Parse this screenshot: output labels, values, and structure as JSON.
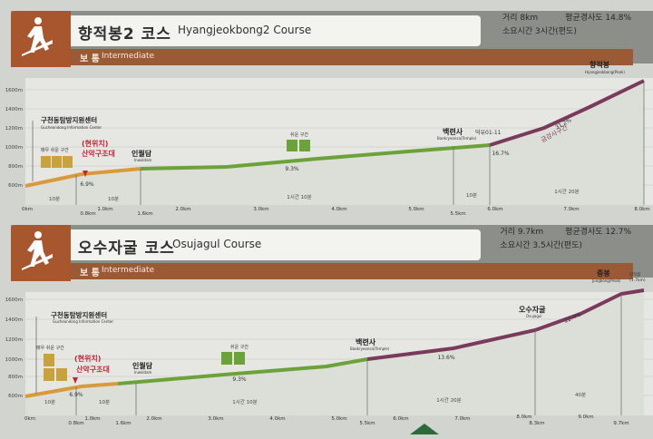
{
  "colors": {
    "badge": "#a8562e",
    "header": "#8c8e8a",
    "strip": "#9b5a36",
    "green": "#6ca23a",
    "orange": "#d89a3c",
    "purple": "#7a3a5c",
    "red_marker": "#c0283a"
  },
  "course1": {
    "title_ko": "향적봉2 코스",
    "title_en": "Hyangjeokbong2 Course",
    "distance_label": "거리 8km",
    "slope_label": "평균경사도  14.8%",
    "time_label": "소요시간 3시간(편도)",
    "difficulty_ko": "보 통",
    "difficulty_en": "Intermediate",
    "y_ticks": [
      "1600m",
      "1400m",
      "1200m",
      "1000m",
      "800m",
      "600m"
    ],
    "x_ticks": [
      "0km",
      "0.8km",
      "1.0km",
      "1.6km",
      "2.0km",
      "3.0km",
      "4.0km",
      "5.0km",
      "5.5km",
      "6.0km",
      "7.0km",
      "8.0km"
    ],
    "labels": {
      "info_center": "구천동탐방지원센터",
      "info_center_en": "Gucheondong Information Center",
      "easy": "매우 쉬운 구간",
      "rescue_here": "(현위치)",
      "rescue": "산악구조대",
      "inwoldam": "인월담",
      "inwoldam_en": "Inwoldam",
      "easy2": "쉬운 구간",
      "baengnyeonsa": "백련사",
      "baengnyeonsa_en": "Baekryeonsa(Temple)",
      "markers": "덕유01-11",
      "hard": "금강사구간",
      "peak": "향적봉",
      "peak_en": "Hyangjeokbong(Peak)"
    },
    "percents": {
      "p1": "6.9%",
      "p2": "9.3%",
      "p3": "16.7%",
      "p4": "31.2%"
    },
    "durations": {
      "d1": "10분",
      "d2": "10분",
      "d3": "1시간 10분",
      "d4": "10분",
      "d5": "1시간 20분"
    }
  },
  "course2": {
    "title_ko": "오수자굴 코스",
    "title_en": "Osujagul Course",
    "distance_label": "거리  9.7km",
    "slope_label": "평균경사도  12.7%",
    "time_label": "소요시간  3.5시간(편도)",
    "difficulty_ko": "보 통",
    "difficulty_en": "Intermediate",
    "y_ticks": [
      "1600m",
      "1400m",
      "1200m",
      "1000m",
      "800m",
      "600m"
    ],
    "x_ticks": [
      "0km",
      "0.8km",
      "1.0km",
      "1.6km",
      "2.0km",
      "3.0km",
      "4.0km",
      "5.0km",
      "5.5km",
      "6.0km",
      "7.0km",
      "8.0km",
      "8.3km",
      "9.0km",
      "9.7km"
    ],
    "labels": {
      "info_center": "구천동탐방지원센터",
      "info_center_en": "Gucheondong Information Center",
      "easy": "매우 쉬운 구간",
      "rescue_here": "(현위치)",
      "rescue": "산악구조대",
      "inwoldam": "인월담",
      "inwoldam_en": "Inwoldam",
      "easy2": "쉬운 구간",
      "baengnyeonsa": "백련사",
      "baengnyeonsa_en": "Baekryeonsa(Temple)",
      "osujagul": "오수자굴",
      "osujagul_en": "Osujagul",
      "jungbong": "중봉",
      "jungbong_en": "Jungbong(Peak)",
      "hyangjeok": "향적봉",
      "hyangjeok_dist": "(1.7km)"
    },
    "percents": {
      "p1": "6.9%",
      "p2": "9.3%",
      "p3": "13.6%",
      "p4": "22.4%"
    },
    "durations": {
      "d1": "10분",
      "d2": "10분",
      "d3": "1시간 10분",
      "d4": "1시간 20분",
      "d5": "40분"
    }
  }
}
